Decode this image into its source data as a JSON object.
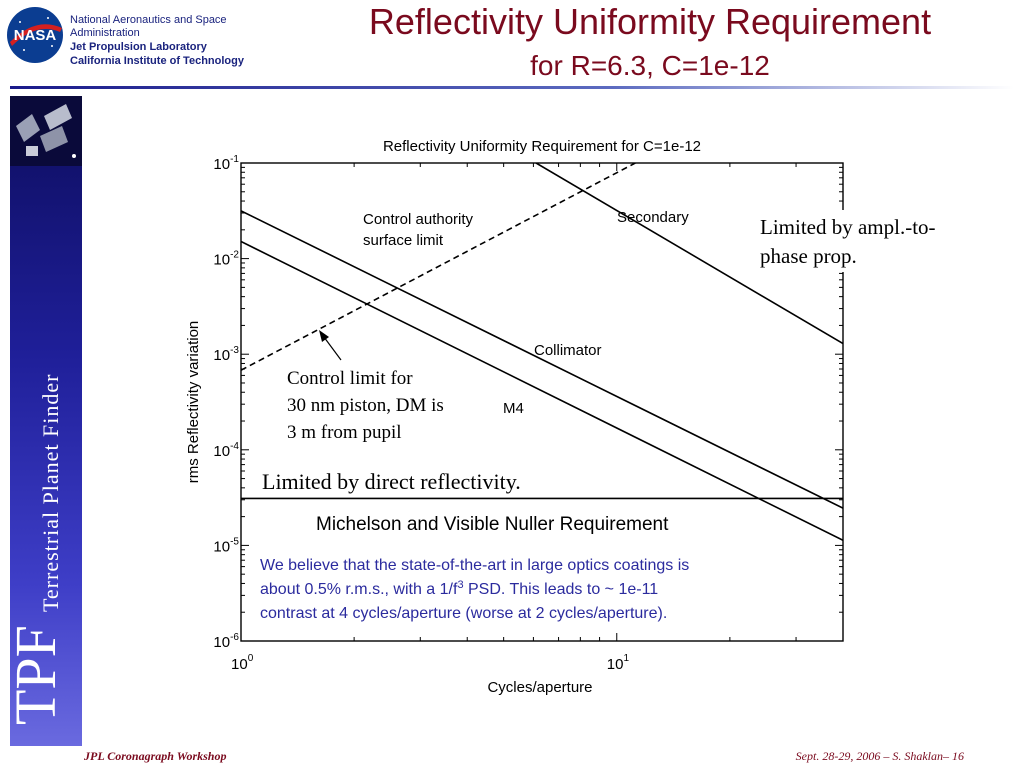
{
  "header": {
    "org_line1": "National Aeronautics and Space",
    "org_line2": "Administration",
    "org_line3": "Jet Propulsion Laboratory",
    "org_line4": "California Institute of Technology",
    "logo_text": "NASA",
    "title": "Reflectivity Uniformity Requirement",
    "subtitle": "for R=6.3, C=1e-12"
  },
  "banner": {
    "short": "TPF",
    "full": "Terrestrial Planet Finder"
  },
  "footer": {
    "left": "JPL Coronagraph Workshop",
    "right": "Sept. 28-29, 2006  –   S. Shaklan– 16"
  },
  "colors": {
    "title": "#7a0a1e",
    "banner": "#1f1f99",
    "note": "#2b2b9e"
  },
  "chart_data": {
    "type": "line",
    "title": "Reflectivity Uniformity Requirement for C=1e-12",
    "xlabel": "Cycles/aperture",
    "ylabel": "rms Reflectivity variation",
    "x_scale": "log",
    "y_scale": "log",
    "xlim": [
      1,
      40
    ],
    "ylim": [
      1e-06,
      0.1
    ],
    "x_ticks": [
      {
        "value": 1,
        "base": "10",
        "exp": "0"
      },
      {
        "value": 10,
        "base": "10",
        "exp": "1"
      }
    ],
    "y_ticks": [
      {
        "value": 0.1,
        "base": "10",
        "exp": "-1"
      },
      {
        "value": 0.01,
        "base": "10",
        "exp": "-2"
      },
      {
        "value": 0.001,
        "base": "10",
        "exp": "-3"
      },
      {
        "value": 0.0001,
        "base": "10",
        "exp": "-4"
      },
      {
        "value": 1e-05,
        "base": "10",
        "exp": "-5"
      },
      {
        "value": 1e-06,
        "base": "10",
        "exp": "-6"
      }
    ],
    "series": [
      {
        "key": "secondary",
        "style": "solid",
        "x": [
          6.1,
          40
        ],
        "y": [
          0.1,
          0.00129
        ]
      },
      {
        "key": "collimator",
        "style": "solid",
        "x": [
          1,
          40
        ],
        "y": [
          0.0316,
          2.45e-05
        ]
      },
      {
        "key": "m4",
        "style": "solid",
        "x": [
          1,
          40
        ],
        "y": [
          0.0151,
          1.13e-05
        ]
      },
      {
        "key": "control",
        "style": "dashed",
        "x": [
          1,
          11.2
        ],
        "y": [
          0.00068,
          0.1
        ]
      },
      {
        "key": "requirement",
        "style": "solid",
        "x": [
          1,
          40
        ],
        "y": [
          3.1e-05,
          3.1e-05
        ]
      }
    ],
    "labels": {
      "secondary": "Secondary",
      "collimator": "Collimator",
      "m4": "M4",
      "control_authority_1": "Control authority",
      "control_authority_2": "surface limit",
      "requirement": "Michelson and Visible Nuller Requirement"
    },
    "annotations": {
      "ampl_1": "Limited by ampl.-to-",
      "ampl_2": "phase prop.",
      "piston_1": "Control limit for",
      "piston_2": "30 nm piston, DM is",
      "piston_3": "3 m from pupil",
      "direct": "Limited by direct reflectivity.",
      "note_1a": "We believe that the state-of-the-art in large optics coatings is",
      "note_2a": "about 0.5% r.m.s., with a 1/f",
      "note_2sup": "3",
      "note_2b": " PSD. This leads to ~ 1e-11",
      "note_3a": "contrast at 4 cycles/aperture (worse at 2 cycles/aperture)."
    }
  }
}
